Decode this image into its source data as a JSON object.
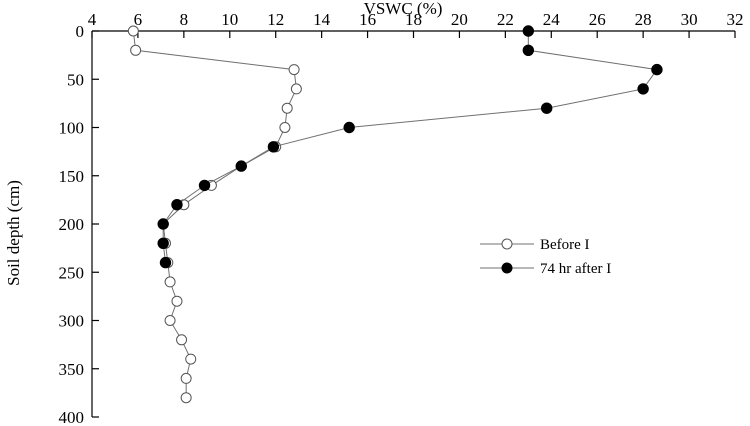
{
  "chart_data": {
    "type": "line",
    "title": "",
    "xlabel": "VSWC (%)",
    "ylabel": "Soil depth (cm)",
    "xlim": [
      4,
      32
    ],
    "ylim": [
      0,
      400
    ],
    "x_axis_position": "top",
    "y_axis_inverted": true,
    "grid": false,
    "legend_placement": "center-right",
    "x_ticks": [
      "4",
      "6",
      "8",
      "10",
      "12",
      "14",
      "16",
      "18",
      "20",
      "22",
      "24",
      "26",
      "28",
      "30",
      "32"
    ],
    "y_ticks": [
      "0",
      "50",
      "100",
      "150",
      "200",
      "250",
      "300",
      "350",
      "400"
    ],
    "series": [
      {
        "name": "Before I",
        "marker": "open-circle",
        "color": "#808080",
        "points": [
          {
            "vswc": 5.8,
            "depth": 0
          },
          {
            "vswc": 5.9,
            "depth": 20
          },
          {
            "vswc": 12.8,
            "depth": 40
          },
          {
            "vswc": 12.9,
            "depth": 60
          },
          {
            "vswc": 12.5,
            "depth": 80
          },
          {
            "vswc": 12.4,
            "depth": 100
          },
          {
            "vswc": 12.0,
            "depth": 120
          },
          {
            "vswc": 10.5,
            "depth": 140
          },
          {
            "vswc": 9.2,
            "depth": 160
          },
          {
            "vswc": 8.0,
            "depth": 180
          },
          {
            "vswc": 7.1,
            "depth": 200
          },
          {
            "vswc": 7.2,
            "depth": 220
          },
          {
            "vswc": 7.3,
            "depth": 240
          },
          {
            "vswc": 7.4,
            "depth": 260
          },
          {
            "vswc": 7.7,
            "depth": 280
          },
          {
            "vswc": 7.4,
            "depth": 300
          },
          {
            "vswc": 7.9,
            "depth": 320
          },
          {
            "vswc": 8.3,
            "depth": 340
          },
          {
            "vswc": 8.1,
            "depth": 360
          },
          {
            "vswc": 8.1,
            "depth": 380
          }
        ]
      },
      {
        "name": "74 hr after I",
        "marker": "filled-circle",
        "color": "#000000",
        "points": [
          {
            "vswc": 23.0,
            "depth": 0
          },
          {
            "vswc": 23.0,
            "depth": 20
          },
          {
            "vswc": 28.6,
            "depth": 40
          },
          {
            "vswc": 28.0,
            "depth": 60
          },
          {
            "vswc": 23.8,
            "depth": 80
          },
          {
            "vswc": 15.2,
            "depth": 100
          },
          {
            "vswc": 11.9,
            "depth": 120
          },
          {
            "vswc": 10.5,
            "depth": 140
          },
          {
            "vswc": 8.9,
            "depth": 160
          },
          {
            "vswc": 7.7,
            "depth": 180
          },
          {
            "vswc": 7.1,
            "depth": 200
          },
          {
            "vswc": 7.1,
            "depth": 220
          },
          {
            "vswc": 7.2,
            "depth": 240
          }
        ]
      }
    ]
  }
}
